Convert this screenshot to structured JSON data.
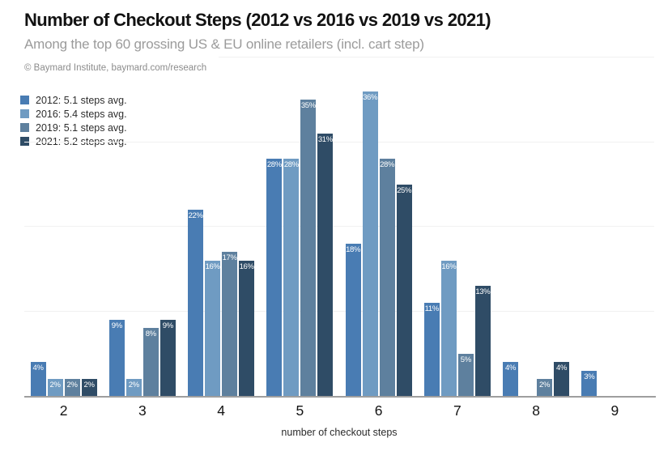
{
  "header": {
    "title": "Number of Checkout Steps (2012 vs 2016 vs 2019 vs 2021)",
    "subtitle": "Among the top 60 grossing US & EU online retailers (incl. cart step)",
    "attribution": "© Baymard Institute, baymard.com/research"
  },
  "chart_data": {
    "type": "bar",
    "title": "Number of Checkout Steps (2012 vs 2016 vs 2019 vs 2021)",
    "subtitle": "Among the top 60 grossing US & EU online retailers (incl. cart step)",
    "categories": [
      "2",
      "3",
      "4",
      "5",
      "6",
      "7",
      "8",
      "9"
    ],
    "series": [
      {
        "name": "2012",
        "legend_label": "2012: 5.1 steps avg.",
        "color": "#497cb3",
        "values": [
          4,
          9,
          22,
          28,
          18,
          11,
          4,
          3
        ]
      },
      {
        "name": "2016",
        "legend_label": "2016: 5.4 steps avg.",
        "color": "#6f9bc2",
        "values": [
          2,
          2,
          16,
          28,
          36,
          16,
          0,
          0
        ]
      },
      {
        "name": "2019",
        "legend_label": "2019: 5.1 steps avg.",
        "color": "#5e809e",
        "values": [
          2,
          8,
          17,
          35,
          28,
          5,
          2,
          0
        ]
      },
      {
        "name": "2021",
        "legend_label": "2021: 5.2 steps avg.",
        "color": "#2f4c66",
        "values": [
          2,
          9,
          16,
          31,
          25,
          13,
          4,
          0
        ]
      }
    ],
    "xlabel": "number of checkout steps",
    "ylabel": "",
    "ylim": [
      0,
      40
    ],
    "gridlines": [
      10,
      20,
      30,
      40
    ],
    "value_suffix": "%",
    "value_labels": "inside-top-white",
    "legend_position": "top-left",
    "grid": true
  },
  "colors": {
    "axis_line": "#9e9e9e",
    "gridline": "#f1f1f1",
    "title_text": "#121212",
    "subtitle_text": "#9b9b9b",
    "attribution_text": "#8c8c8c"
  }
}
